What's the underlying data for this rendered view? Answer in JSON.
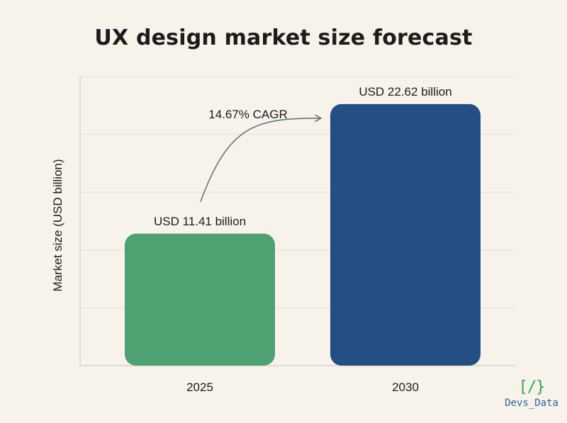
{
  "chart_data": {
    "type": "bar",
    "title": "UX design market size forecast",
    "ylabel": "Market size (USD billion)",
    "xlabel": "",
    "categories": [
      "2025",
      "2030"
    ],
    "values": [
      11.41,
      22.62
    ],
    "data_labels": [
      "USD 11.41 billion",
      "USD 22.62 billion"
    ],
    "bar_colors": [
      "#4ea170",
      "#234f85"
    ],
    "ylim": [
      0,
      25
    ],
    "grid": true,
    "annotation": {
      "text": "14.67% CAGR",
      "type": "curved-arrow",
      "from_category": "2025",
      "to_category": "2030"
    }
  },
  "logo": {
    "mark": "[/}",
    "name": "Devs_Data"
  }
}
